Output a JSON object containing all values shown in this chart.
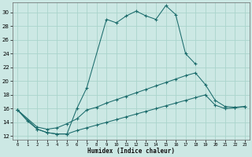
{
  "xlabel": "Humidex (Indice chaleur)",
  "bg_color": "#cce8e4",
  "grid_color": "#aad4cc",
  "line_color": "#1a6b6b",
  "xlim": [
    -0.5,
    23.5
  ],
  "ylim": [
    11.5,
    31.5
  ],
  "xticks": [
    0,
    1,
    2,
    3,
    4,
    5,
    6,
    7,
    8,
    9,
    10,
    11,
    12,
    13,
    14,
    15,
    16,
    17,
    18,
    19,
    20,
    21,
    22,
    23
  ],
  "yticks": [
    12,
    14,
    16,
    18,
    20,
    22,
    24,
    26,
    28,
    30
  ],
  "series": [
    {
      "x": [
        0,
        1,
        2,
        3,
        4,
        5,
        6,
        7,
        9,
        10,
        11,
        12,
        13,
        14,
        15,
        16,
        17,
        18
      ],
      "y": [
        15.8,
        14.2,
        13.0,
        12.5,
        12.3,
        12.3,
        16.0,
        19.0,
        29.0,
        28.5,
        29.5,
        30.2,
        29.5,
        29.0,
        31.0,
        29.7,
        24.0,
        22.5
      ]
    },
    {
      "x": [
        0,
        2,
        3,
        4,
        5,
        6,
        7,
        8,
        9,
        10,
        11,
        12,
        13,
        14,
        15,
        16,
        17,
        18,
        19,
        20,
        21,
        22,
        23
      ],
      "y": [
        15.8,
        13.3,
        13.0,
        13.2,
        13.8,
        14.5,
        15.8,
        16.2,
        16.8,
        17.3,
        17.8,
        18.3,
        18.8,
        19.3,
        19.8,
        20.3,
        20.8,
        21.2,
        19.5,
        17.2,
        16.3,
        16.2,
        16.3
      ]
    },
    {
      "x": [
        0,
        2,
        3,
        4,
        5,
        6,
        7,
        8,
        9,
        10,
        11,
        12,
        13,
        14,
        15,
        16,
        17,
        18,
        19,
        20,
        21,
        22,
        23
      ],
      "y": [
        15.8,
        13.0,
        12.5,
        12.3,
        12.3,
        12.8,
        13.2,
        13.6,
        14.0,
        14.4,
        14.8,
        15.2,
        15.6,
        16.0,
        16.4,
        16.8,
        17.2,
        17.6,
        18.0,
        16.5,
        16.0,
        16.1,
        16.3
      ]
    }
  ]
}
